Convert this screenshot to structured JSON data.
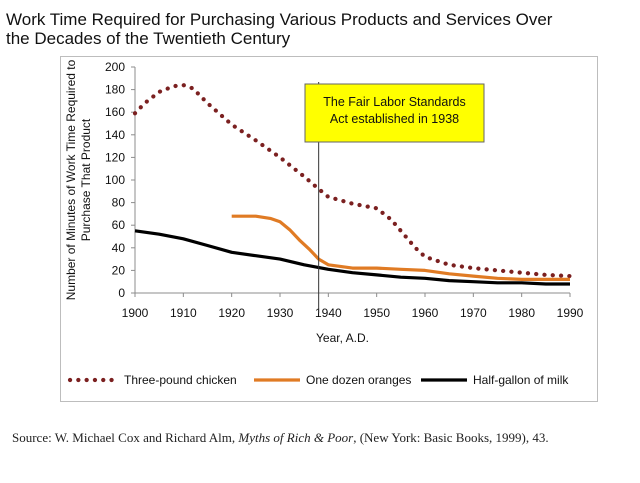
{
  "title_lines": [
    "Work Time Required for Purchasing Various Products and Services Over",
    "the Decades of the Twentieth Century"
  ],
  "source": {
    "prefix": "Source: W. Michael Cox and Richard Alm, ",
    "book": "Myths of Rich & Poor",
    "suffix": ", (New York: Basic Books, 1999), 43."
  },
  "chart_data": {
    "type": "line",
    "xlabel": "Year, A.D.",
    "ylabel_lines": [
      "Number of Minutes of Work Time Required to",
      "Purchase That Product"
    ],
    "xlim": [
      1900,
      1990
    ],
    "ylim": [
      0,
      200
    ],
    "xticks": [
      1900,
      1910,
      1920,
      1930,
      1940,
      1950,
      1960,
      1970,
      1980,
      1990
    ],
    "yticks": [
      0,
      20,
      40,
      60,
      80,
      100,
      120,
      140,
      160,
      180,
      200
    ],
    "grid": false,
    "legend_position": "bottom",
    "series": [
      {
        "name": "Three-pound chicken",
        "style": "dotted",
        "color": "#7b2020",
        "x": [
          1900,
          1902,
          1905,
          1908,
          1910,
          1912,
          1915,
          1920,
          1925,
          1930,
          1935,
          1938,
          1940,
          1945,
          1950,
          1953,
          1955,
          1958,
          1960,
          1965,
          1970,
          1975,
          1980,
          1985,
          1990
        ],
        "y": [
          159,
          168,
          178,
          183,
          184,
          181,
          168,
          149,
          135,
          120,
          103,
          92,
          85,
          79,
          75,
          65,
          55,
          40,
          32,
          25,
          22,
          20,
          18,
          16,
          15
        ]
      },
      {
        "name": "One dozen oranges",
        "style": "solid",
        "color": "#e07b24",
        "x": [
          1920,
          1925,
          1928,
          1930,
          1932,
          1934,
          1936,
          1938,
          1940,
          1945,
          1950,
          1955,
          1960,
          1965,
          1970,
          1975,
          1980,
          1985,
          1990
        ],
        "y": [
          68,
          68,
          66,
          63,
          56,
          47,
          39,
          30,
          25,
          22,
          22,
          21,
          20,
          17,
          15,
          13,
          12,
          12,
          12
        ]
      },
      {
        "name": "Half-gallon of milk",
        "style": "solid",
        "color": "#000000",
        "x": [
          1900,
          1905,
          1910,
          1915,
          1920,
          1925,
          1930,
          1935,
          1940,
          1945,
          1950,
          1955,
          1960,
          1965,
          1970,
          1975,
          1980,
          1985,
          1990
        ],
        "y": [
          55,
          52,
          48,
          42,
          36,
          33,
          30,
          25,
          21,
          18,
          16,
          14,
          13,
          11,
          10,
          9,
          9,
          8,
          8
        ]
      }
    ],
    "annotation": {
      "lines": [
        "The Fair Labor Standards",
        "Act established in 1938"
      ],
      "x": 1938,
      "fill": "#ffff00"
    }
  }
}
